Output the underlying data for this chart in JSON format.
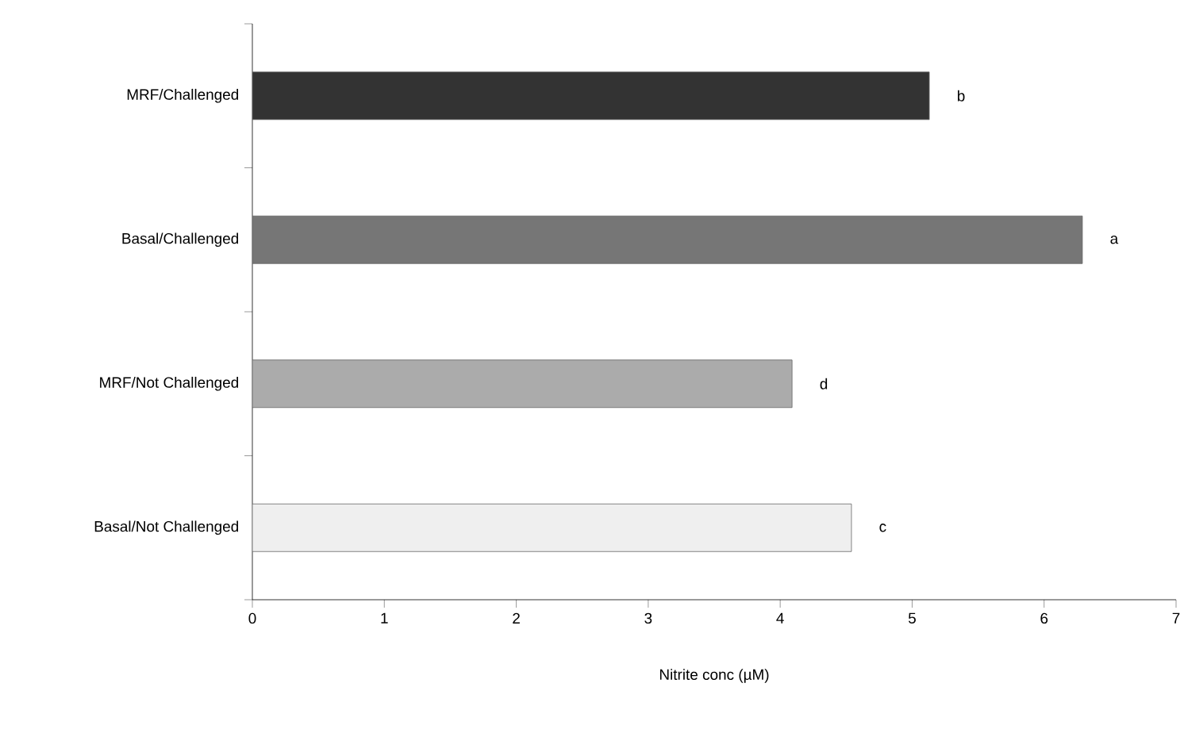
{
  "chart_data": {
    "type": "bar",
    "orientation": "horizontal",
    "xlabel": "Nitrite conc (µM)",
    "categories": [
      "MRF/Challenged",
      "Basal/Challenged",
      "MRF/Not Challenged",
      "Basal/Not Challenged"
    ],
    "values": [
      5.13,
      6.29,
      4.09,
      4.54
    ],
    "colors": [
      "#333333",
      "#767676",
      "#ababab",
      "#efefef"
    ],
    "xlim": [
      0,
      7
    ],
    "xticks": [
      0,
      1,
      2,
      3,
      4,
      5,
      6,
      7
    ],
    "annotations": [
      {
        "text": "b",
        "x": 5.13,
        "y": "MRF/Challenged"
      },
      {
        "text": "a",
        "x": 6.29,
        "y": "Basal/Challenged"
      },
      {
        "text": "d",
        "x": 4.09,
        "y": "MRF/Not Challenged"
      },
      {
        "text": "c",
        "x": 4.54,
        "y": "Basal/Not Challenged"
      }
    ]
  }
}
